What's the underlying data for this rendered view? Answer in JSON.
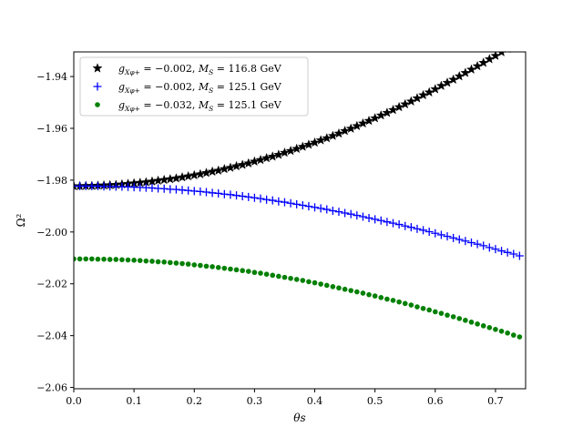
{
  "chart_data": {
    "type": "scatter",
    "xlabel": "θs",
    "ylabel": "Ω²",
    "xlim": [
      0.0,
      0.75
    ],
    "ylim": [
      -2.0605,
      -1.9305
    ],
    "x_ticks": [
      {
        "value": 0.0,
        "label": "0.0"
      },
      {
        "value": 0.1,
        "label": "0.1"
      },
      {
        "value": 0.2,
        "label": "0.2"
      },
      {
        "value": 0.3,
        "label": "0.3"
      },
      {
        "value": 0.4,
        "label": "0.4"
      },
      {
        "value": 0.5,
        "label": "0.5"
      },
      {
        "value": 0.6,
        "label": "0.6"
      },
      {
        "value": 0.7,
        "label": "0.7"
      }
    ],
    "y_ticks": [
      {
        "value": -1.94,
        "label": "−1.94"
      },
      {
        "value": -1.96,
        "label": "−1.96"
      },
      {
        "value": -1.98,
        "label": "−1.98"
      },
      {
        "value": -2.0,
        "label": "−2.00"
      },
      {
        "value": -2.02,
        "label": "−2.02"
      },
      {
        "value": -2.04,
        "label": "−2.04"
      },
      {
        "value": -2.06,
        "label": "−2.06"
      }
    ],
    "grid": false,
    "legend_position": "top-left",
    "x": [
      0.0,
      0.01,
      0.02,
      0.03,
      0.04,
      0.05,
      0.06,
      0.07,
      0.08,
      0.09,
      0.1,
      0.11,
      0.12,
      0.13,
      0.14,
      0.15,
      0.16,
      0.17,
      0.18,
      0.19,
      0.2,
      0.21,
      0.22,
      0.23,
      0.24,
      0.25,
      0.26,
      0.27,
      0.28,
      0.29,
      0.3,
      0.31,
      0.32,
      0.33,
      0.34,
      0.35,
      0.36,
      0.37,
      0.38,
      0.39,
      0.4,
      0.41,
      0.42,
      0.43,
      0.44,
      0.45,
      0.46,
      0.47,
      0.48,
      0.49,
      0.5,
      0.51,
      0.52,
      0.53,
      0.54,
      0.55,
      0.56,
      0.57,
      0.58,
      0.59,
      0.6,
      0.61,
      0.62,
      0.63,
      0.64,
      0.65,
      0.66,
      0.67,
      0.68,
      0.69,
      0.7,
      0.71,
      0.72,
      0.73,
      0.74
    ],
    "series": [
      {
        "name": "g_{Xφ+} = −0.002, M_S = 116.8 GeV",
        "legend_main": "g",
        "legend_sub": "Xφ+",
        "legend_value": " = −0.002,  ",
        "legend_mass": "M",
        "legend_mass_sub": "S",
        "legend_rest": " = 116.8 GeV",
        "marker": "star",
        "color": "#000000",
        "values": [
          -1.9823,
          -1.9823,
          -1.9822,
          -1.9822,
          -1.9821,
          -1.982,
          -1.9819,
          -1.9818,
          -1.9816,
          -1.9814,
          -1.9812,
          -1.981,
          -1.9808,
          -1.9805,
          -1.9802,
          -1.9799,
          -1.9796,
          -1.9793,
          -1.9789,
          -1.9785,
          -1.9781,
          -1.9777,
          -1.9772,
          -1.9767,
          -1.9763,
          -1.9757,
          -1.9752,
          -1.9746,
          -1.9741,
          -1.9735,
          -1.9728,
          -1.9722,
          -1.9715,
          -1.9709,
          -1.9702,
          -1.9694,
          -1.9687,
          -1.9679,
          -1.9671,
          -1.9663,
          -1.9655,
          -1.9646,
          -1.9638,
          -1.9629,
          -1.962,
          -1.961,
          -1.9601,
          -1.9591,
          -1.9581,
          -1.9571,
          -1.9561,
          -1.955,
          -1.954,
          -1.9529,
          -1.9518,
          -1.9507,
          -1.9496,
          -1.9484,
          -1.9472,
          -1.9461,
          -1.9449,
          -1.9436,
          -1.9424,
          -1.9412,
          -1.9399,
          -1.9386,
          -1.9373,
          -1.936,
          -1.9347,
          -1.9333,
          -1.932,
          -1.9306,
          -1.9293,
          -1.9279,
          -1.9265
        ]
      },
      {
        "name": "g_{Xφ+} = −0.002, M_S = 125.1 GeV",
        "legend_main": "g",
        "legend_sub": "Xφ+",
        "legend_value": " = −0.002,  ",
        "legend_mass": "M",
        "legend_mass_sub": "S",
        "legend_rest": " = 125.1 GeV",
        "marker": "plus",
        "color": "#0000ff",
        "values": [
          -1.9823,
          -1.9823,
          -1.9823,
          -1.9823,
          -1.9823,
          -1.9824,
          -1.9824,
          -1.9825,
          -1.9825,
          -1.9826,
          -1.9827,
          -1.9828,
          -1.9829,
          -1.983,
          -1.9832,
          -1.9833,
          -1.9835,
          -1.9836,
          -1.9838,
          -1.984,
          -1.9842,
          -1.9844,
          -1.9846,
          -1.9849,
          -1.9851,
          -1.9854,
          -1.9856,
          -1.9859,
          -1.9862,
          -1.9865,
          -1.9868,
          -1.9871,
          -1.9875,
          -1.9878,
          -1.9882,
          -1.9885,
          -1.9889,
          -1.9893,
          -1.9897,
          -1.9901,
          -1.9905,
          -1.9909,
          -1.9913,
          -1.9918,
          -1.9922,
          -1.9927,
          -1.9931,
          -1.9936,
          -1.9941,
          -1.9946,
          -1.9951,
          -1.9956,
          -1.9961,
          -1.9966,
          -1.9971,
          -1.9977,
          -1.9982,
          -1.9988,
          -1.9993,
          -1.9999,
          -2.0005,
          -2.0011,
          -2.0017,
          -2.0023,
          -2.0029,
          -2.0035,
          -2.0041,
          -2.0047,
          -2.0053,
          -2.006,
          -2.0066,
          -2.0073,
          -2.0079,
          -2.0085,
          -2.0092
        ]
      },
      {
        "name": "g_{Xφ+} = −0.032, M_S = 125.1 GeV",
        "legend_main": "g",
        "legend_sub": "Xφ+",
        "legend_value": " = −0.032,  ",
        "legend_mass": "M",
        "legend_mass_sub": "S",
        "legend_rest": " = 125.1 GeV",
        "marker": "circle",
        "color": "#008000",
        "values": [
          -2.0104,
          -2.0104,
          -2.0104,
          -2.0104,
          -2.0105,
          -2.0105,
          -2.0106,
          -2.0106,
          -2.0107,
          -2.0108,
          -2.0109,
          -2.011,
          -2.0112,
          -2.0113,
          -2.0115,
          -2.0116,
          -2.0118,
          -2.012,
          -2.0122,
          -2.0124,
          -2.0127,
          -2.0129,
          -2.0132,
          -2.0134,
          -2.0137,
          -2.014,
          -2.0143,
          -2.0146,
          -2.0149,
          -2.0152,
          -2.0156,
          -2.0159,
          -2.0163,
          -2.0167,
          -2.0171,
          -2.0175,
          -2.0179,
          -2.0183,
          -2.0187,
          -2.0192,
          -2.0196,
          -2.0201,
          -2.0206,
          -2.0211,
          -2.0216,
          -2.0221,
          -2.0226,
          -2.0231,
          -2.0236,
          -2.0242,
          -2.0247,
          -2.0253,
          -2.0259,
          -2.0264,
          -2.027,
          -2.0276,
          -2.0282,
          -2.0289,
          -2.0295,
          -2.0301,
          -2.0308,
          -2.0314,
          -2.0321,
          -2.0327,
          -2.0334,
          -2.0341,
          -2.0348,
          -2.0355,
          -2.0362,
          -2.0369,
          -2.0376,
          -2.0383,
          -2.039,
          -2.0398,
          -2.0405
        ]
      }
    ]
  }
}
